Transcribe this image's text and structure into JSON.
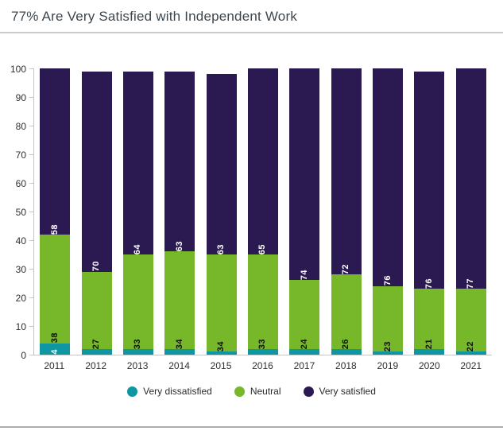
{
  "header": {
    "title": "77% Are Very Satisfied with Independent Work"
  },
  "chart_data": {
    "type": "bar",
    "variant": "stacked",
    "title": "77% Are Very Satisfied with Independent Work",
    "categories": [
      "2011",
      "2012",
      "2013",
      "2014",
      "2015",
      "2016",
      "2017",
      "2018",
      "2019",
      "2020",
      "2021"
    ],
    "series": [
      {
        "name": "Very dissatisfied",
        "color": "#0e97a2",
        "label_color": "#ffffff",
        "values": [
          4,
          2,
          2,
          2,
          1,
          2,
          2,
          2,
          1,
          2,
          1
        ]
      },
      {
        "name": "Neutral",
        "color": "#76b82a",
        "label_color": "#111111",
        "values": [
          38,
          27,
          33,
          34,
          34,
          33,
          24,
          26,
          23,
          21,
          22
        ]
      },
      {
        "name": "Very satisfied",
        "color": "#2a1a51",
        "label_color": "#ffffff",
        "values": [
          58,
          70,
          64,
          63,
          63,
          65,
          74,
          72,
          76,
          76,
          77
        ]
      }
    ],
    "xlabel": "",
    "ylabel": "",
    "ylim": [
      0,
      100
    ],
    "yticks": [
      0,
      10,
      20,
      30,
      40,
      50,
      60,
      70,
      80,
      90,
      100
    ],
    "grid": false,
    "legend_position": "bottom"
  }
}
